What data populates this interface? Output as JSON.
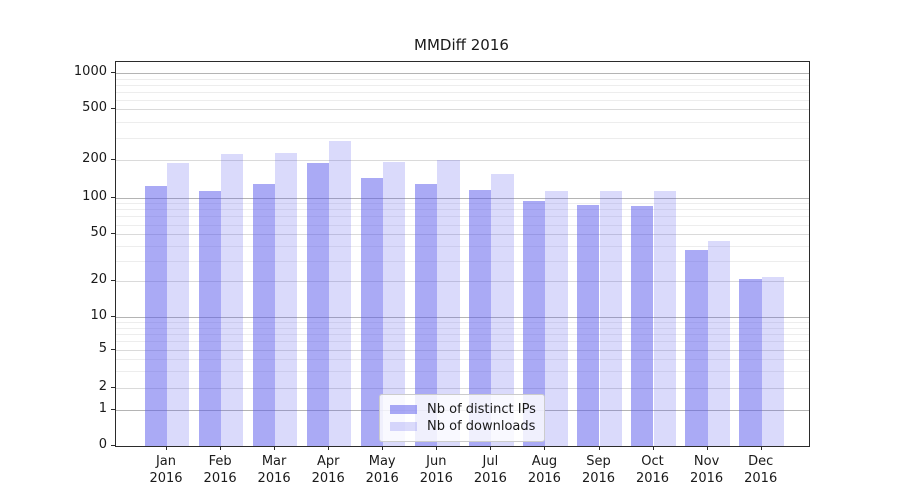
{
  "figure": {
    "background": "#ffffff"
  },
  "chart_data": {
    "type": "bar",
    "title": "MMDiff 2016",
    "categories": [
      "Jan 2016",
      "Feb 2016",
      "Mar 2016",
      "Apr 2016",
      "May 2016",
      "Jun 2016",
      "Jul 2016",
      "Aug 2016",
      "Sep 2016",
      "Oct 2016",
      "Nov 2016",
      "Dec 2016"
    ],
    "series": [
      {
        "name": "Nb of distinct IPs",
        "color": "rgba(85,85,235,0.50)",
        "values": [
          124,
          112,
          128,
          190,
          145,
          128,
          115,
          94,
          87,
          85,
          37,
          21
        ]
      },
      {
        "name": "Nb of downloads",
        "color": "rgba(85,85,235,0.22)",
        "values": [
          190,
          225,
          227,
          285,
          195,
          200,
          156,
          113,
          113,
          113,
          44,
          22
        ]
      }
    ],
    "xlabel": "",
    "ylabel": "",
    "yscale": "symlog",
    "yticks": [
      0,
      1,
      2,
      5,
      10,
      20,
      50,
      100,
      200,
      500,
      1000
    ],
    "ylim": [
      0,
      1200
    ],
    "grid": "both",
    "legend_position": "lower-center-inside"
  }
}
